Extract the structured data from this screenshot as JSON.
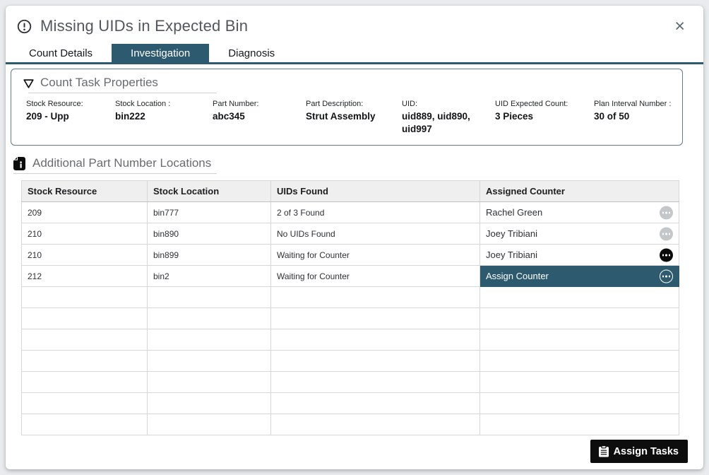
{
  "dialog": {
    "title": "Missing UIDs in Expected Bin",
    "close_label": "×"
  },
  "tabs": [
    {
      "label": "Count Details",
      "active": false
    },
    {
      "label": "Investigation",
      "active": true
    },
    {
      "label": "Diagnosis",
      "active": false
    }
  ],
  "properties_panel": {
    "title": "Count Task Properties",
    "fields": [
      {
        "label": "Stock Resource:",
        "value": "209 - Upp"
      },
      {
        "label": "Stock Location :",
        "value": "bin222"
      },
      {
        "label": "Part Number:",
        "value": "abc345"
      },
      {
        "label": "Part Description:",
        "value": "Strut Assembly"
      },
      {
        "label": "UID:",
        "value": "uid889, uid890, uid997"
      },
      {
        "label": "UID Expected Count:",
        "value": "3 Pieces"
      },
      {
        "label": "Plan Interval Number :",
        "value": "30 of 50"
      }
    ]
  },
  "locations_section": {
    "title": "Additional Part Number Locations"
  },
  "table": {
    "columns": [
      "Stock Resource",
      "Stock Location",
      "UIDs Found",
      "Assigned Counter"
    ],
    "rows": [
      {
        "stock_resource": "209",
        "stock_location": "bin777",
        "uids_found": "2 of 3 Found",
        "assigned_counter": "Rachel Green",
        "counter_state": "normal"
      },
      {
        "stock_resource": "210",
        "stock_location": "bin890",
        "uids_found": "No UIDs Found",
        "assigned_counter": "Joey Tribiani",
        "counter_state": "normal"
      },
      {
        "stock_resource": "210",
        "stock_location": "bin899",
        "uids_found": "Waiting for Counter",
        "assigned_counter": "Joey Tribiani",
        "counter_state": "active"
      },
      {
        "stock_resource": "212",
        "stock_location": "bin2",
        "uids_found": "Waiting for Counter",
        "assigned_counter": "Assign Counter",
        "counter_state": "selected"
      }
    ],
    "empty_row_count": 7
  },
  "footer": {
    "assign_tasks_label": "Assign Tasks"
  },
  "colors": {
    "accent_teal": "#2e5a6f",
    "button_black": "#0d0d0d",
    "ellipsis_grey": "#c3c7ca"
  }
}
